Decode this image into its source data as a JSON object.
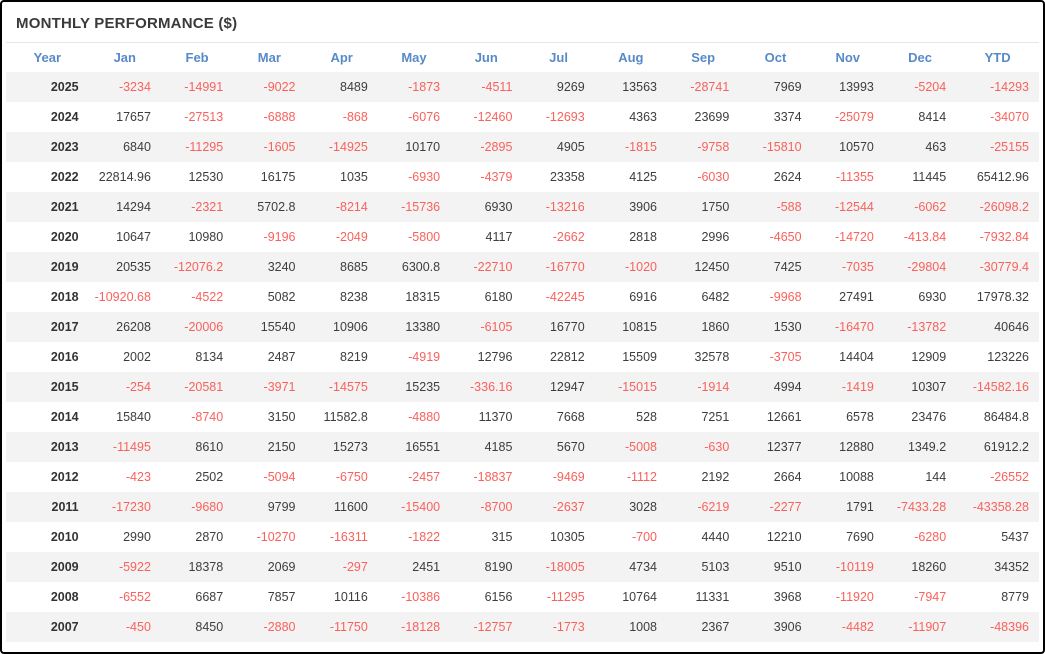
{
  "title": "MONTHLY PERFORMANCE ($)",
  "colors": {
    "header_text": "#578ac9",
    "negative_value": "#fa615c",
    "positive_value": "#3d3d3d",
    "year_text": "#333333",
    "row_stripe": "#f3f3f3",
    "title_text": "#3a3a3a",
    "outer_border": "#000000",
    "divider": "#e7e7e7"
  },
  "chart_data": {
    "type": "table",
    "title": "MONTHLY PERFORMANCE ($)",
    "columns": [
      "Year",
      "Jan",
      "Feb",
      "Mar",
      "Apr",
      "May",
      "Jun",
      "Jul",
      "Aug",
      "Sep",
      "Oct",
      "Nov",
      "Dec",
      "YTD"
    ],
    "rows": [
      {
        "year": "2025",
        "values": [
          -3234,
          -14991,
          -9022,
          8489,
          -1873,
          -4511,
          9269,
          13563,
          -28741,
          7969,
          13993,
          -5204,
          -14293
        ]
      },
      {
        "year": "2024",
        "values": [
          17657,
          -27513,
          -6888,
          -868,
          -6076,
          -12460,
          -12693,
          4363,
          23699,
          3374,
          -25079,
          8414,
          -34070
        ]
      },
      {
        "year": "2023",
        "values": [
          6840,
          -11295,
          -1605,
          -14925,
          10170,
          -2895,
          4905,
          -1815,
          -9758,
          -15810,
          10570,
          463,
          -25155
        ]
      },
      {
        "year": "2022",
        "values": [
          22814.96,
          12530,
          16175,
          1035,
          -6930,
          -4379,
          23358,
          4125,
          -6030,
          2624,
          -11355,
          11445,
          65412.96
        ]
      },
      {
        "year": "2021",
        "values": [
          14294,
          -2321,
          5702.8,
          -8214,
          -15736,
          6930,
          -13216,
          3906,
          1750,
          -588,
          -12544,
          -6062,
          -26098.2
        ]
      },
      {
        "year": "2020",
        "values": [
          10647,
          10980,
          -9196,
          -2049,
          -5800,
          4117,
          -2662,
          2818,
          2996,
          -4650,
          -14720,
          -413.84,
          -7932.84
        ]
      },
      {
        "year": "2019",
        "values": [
          20535,
          -12076.2,
          3240,
          8685,
          6300.8,
          -22710,
          -16770,
          -1020,
          12450,
          7425,
          -7035,
          -29804,
          -30779.4
        ]
      },
      {
        "year": "2018",
        "values": [
          -10920.68,
          -4522,
          5082,
          8238,
          18315,
          6180,
          -42245,
          6916,
          6482,
          -9968,
          27491,
          6930,
          17978.32
        ]
      },
      {
        "year": "2017",
        "values": [
          26208,
          -20006,
          15540,
          10906,
          13380,
          -6105,
          16770,
          10815,
          1860,
          1530,
          -16470,
          -13782,
          40646
        ]
      },
      {
        "year": "2016",
        "values": [
          2002,
          8134,
          2487,
          8219,
          -4919,
          12796,
          22812,
          15509,
          32578,
          -3705,
          14404,
          12909,
          123226
        ]
      },
      {
        "year": "2015",
        "values": [
          -254,
          -20581,
          -3971,
          -14575,
          15235,
          -336.16,
          12947,
          -15015,
          -1914,
          4994,
          -1419,
          10307,
          -14582.16
        ]
      },
      {
        "year": "2014",
        "values": [
          15840,
          -8740,
          3150,
          11582.8,
          -4880,
          11370,
          7668,
          528,
          7251,
          12661,
          6578,
          23476,
          86484.8
        ]
      },
      {
        "year": "2013",
        "values": [
          -11495,
          8610,
          2150,
          15273,
          16551,
          4185,
          5670,
          -5008,
          -630,
          12377,
          12880,
          1349.2,
          61912.2
        ]
      },
      {
        "year": "2012",
        "values": [
          -423,
          2502,
          -5094,
          -6750,
          -2457,
          -18837,
          -9469,
          -1112,
          2192,
          2664,
          10088,
          144,
          -26552
        ]
      },
      {
        "year": "2011",
        "values": [
          -17230,
          -9680,
          9799,
          11600,
          -15400,
          -8700,
          -2637,
          3028,
          -6219,
          -2277,
          1791,
          -7433.28,
          -43358.28
        ]
      },
      {
        "year": "2010",
        "values": [
          2990,
          2870,
          -10270,
          -16311,
          -1822,
          315,
          10305,
          -700,
          4440,
          12210,
          7690,
          -6280,
          5437
        ]
      },
      {
        "year": "2009",
        "values": [
          -5922,
          18378,
          2069,
          -297,
          2451,
          8190,
          -18005,
          4734,
          5103,
          9510,
          -10119,
          18260,
          34352
        ]
      },
      {
        "year": "2008",
        "values": [
          -6552,
          6687,
          7857,
          10116,
          -10386,
          6156,
          -11295,
          10764,
          11331,
          3968,
          -11920,
          -7947,
          8779
        ]
      },
      {
        "year": "2007",
        "values": [
          -450,
          8450,
          -2880,
          -11750,
          -18128,
          -12757,
          -1773,
          1008,
          2367,
          3906,
          -4482,
          -11907,
          -48396
        ]
      }
    ]
  }
}
